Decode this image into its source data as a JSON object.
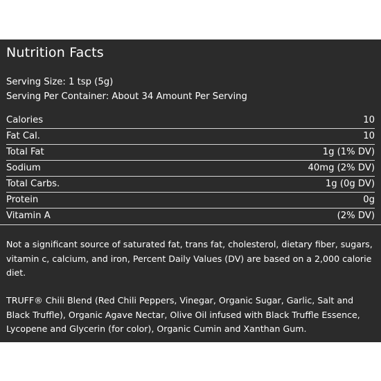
{
  "title": "Nutrition Facts",
  "serving": {
    "size": "Serving Size: 1 tsp (5g)",
    "per_container": "Serving Per Container: About 34 Amount Per Serving"
  },
  "facts": [
    {
      "label": "Calories",
      "value": "10"
    },
    {
      "label": "Fat Cal.",
      "value": "10"
    },
    {
      "label": "Total Fat",
      "value": "1g (1% DV)"
    },
    {
      "label": "Sodium",
      "value": "40mg (2% DV)"
    },
    {
      "label": "Total Carbs.",
      "value": "1g (0g DV)"
    },
    {
      "label": "Protein",
      "value": "0g"
    },
    {
      "label": "Vitamin A",
      "value": "(2% DV)"
    }
  ],
  "note": "Not a significant source of saturated fat, trans fat, cholesterol, dietary fiber, sugars, vitamin c, calcium, and iron, Percent Daily Values (DV) are based on a 2,000 calorie diet.",
  "ingredients": "TRUFF® Chili Blend (Red Chili Peppers, Vinegar, Organic Sugar, Garlic, Salt and Black Truffle), Organic Agave Nectar, Olive Oil infused with Black Truffle Essence, Lycopene and Glycerin (for color), Organic Cumin and Xanthan Gum.",
  "colors": {
    "panel_background": "#2b2b2b",
    "text": "#ffffff",
    "rule": "#d8d8d8"
  }
}
